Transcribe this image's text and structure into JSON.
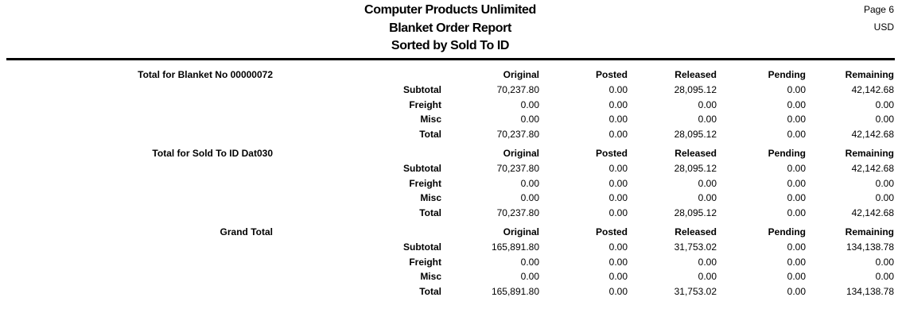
{
  "header": {
    "company": "Computer Products Unlimited",
    "report": "Blanket Order Report",
    "sort": "Sorted by Sold To ID",
    "page": "Page 6",
    "currency": "USD"
  },
  "columns": [
    "Original",
    "Posted",
    "Released",
    "Pending",
    "Remaining"
  ],
  "sections": [
    {
      "label": "Total for Blanket No  00000072",
      "rows": [
        {
          "label": "Subtotal",
          "values": [
            "70,237.80",
            "0.00",
            "28,095.12",
            "0.00",
            "42,142.68"
          ]
        },
        {
          "label": "Freight",
          "values": [
            "0.00",
            "0.00",
            "0.00",
            "0.00",
            "0.00"
          ]
        },
        {
          "label": "Misc",
          "values": [
            "0.00",
            "0.00",
            "0.00",
            "0.00",
            "0.00"
          ]
        },
        {
          "label": "Total",
          "values": [
            "70,237.80",
            "0.00",
            "28,095.12",
            "0.00",
            "42,142.68"
          ]
        }
      ]
    },
    {
      "label": "Total for Sold To ID  Dat030",
      "rows": [
        {
          "label": "Subtotal",
          "values": [
            "70,237.80",
            "0.00",
            "28,095.12",
            "0.00",
            "42,142.68"
          ]
        },
        {
          "label": "Freight",
          "values": [
            "0.00",
            "0.00",
            "0.00",
            "0.00",
            "0.00"
          ]
        },
        {
          "label": "Misc",
          "values": [
            "0.00",
            "0.00",
            "0.00",
            "0.00",
            "0.00"
          ]
        },
        {
          "label": "Total",
          "values": [
            "70,237.80",
            "0.00",
            "28,095.12",
            "0.00",
            "42,142.68"
          ]
        }
      ]
    },
    {
      "label": "Grand Total",
      "rows": [
        {
          "label": "Subtotal",
          "values": [
            "165,891.80",
            "0.00",
            "31,753.02",
            "0.00",
            "134,138.78"
          ]
        },
        {
          "label": "Freight",
          "values": [
            "0.00",
            "0.00",
            "0.00",
            "0.00",
            "0.00"
          ]
        },
        {
          "label": "Misc",
          "values": [
            "0.00",
            "0.00",
            "0.00",
            "0.00",
            "0.00"
          ]
        },
        {
          "label": "Total",
          "values": [
            "165,891.80",
            "0.00",
            "31,753.02",
            "0.00",
            "134,138.78"
          ]
        }
      ]
    }
  ]
}
